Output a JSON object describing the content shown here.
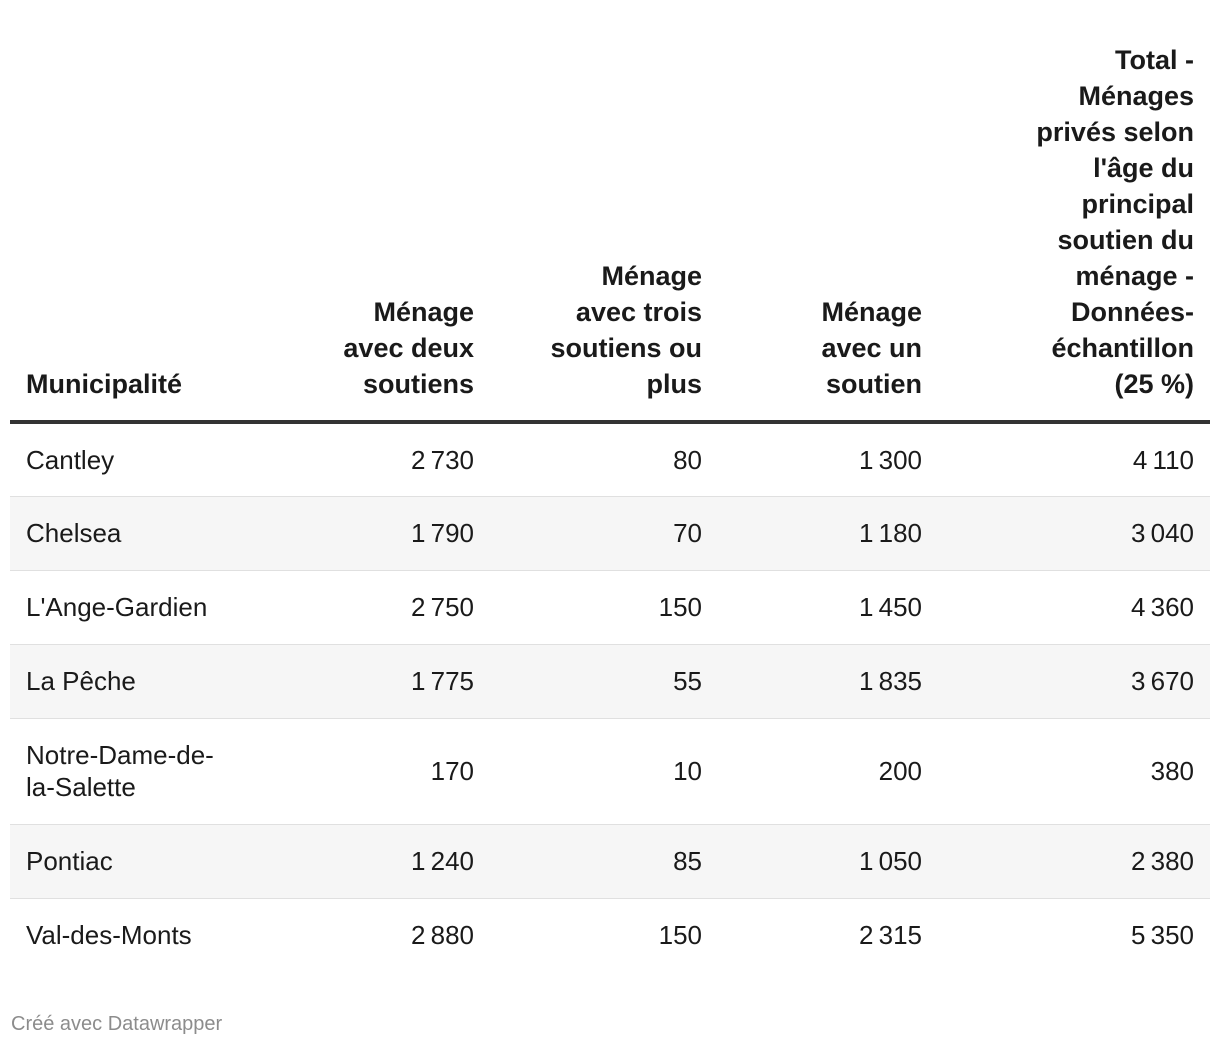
{
  "chart_data": {
    "type": "table",
    "columns": [
      "Municipalité",
      "Ménage avec deux soutiens",
      "Ménage avec trois soutiens ou plus",
      "Ménage avec un soutien",
      "Total - Ménages privés selon l'âge du principal soutien du ménage - Données-échantillon (25 %)"
    ],
    "header_lines": [
      [
        "Municipalité"
      ],
      [
        "Ménage",
        "avec deux",
        "soutiens"
      ],
      [
        "Ménage",
        "avec trois",
        "soutiens ou",
        "plus"
      ],
      [
        "Ménage",
        "avec un",
        "soutien"
      ],
      [
        "Total -",
        "Ménages",
        "privés selon",
        "l'âge du",
        "principal",
        "soutien du",
        "ménage -",
        "Données-",
        "échantillon",
        "(25 %)"
      ]
    ],
    "rows": [
      {
        "municipalite": "Cantley",
        "lines": [
          "Cantley"
        ],
        "deux": 2730,
        "trois": 80,
        "un": 1300,
        "total": 4110
      },
      {
        "municipalite": "Chelsea",
        "lines": [
          "Chelsea"
        ],
        "deux": 1790,
        "trois": 70,
        "un": 1180,
        "total": 3040
      },
      {
        "municipalite": "L'Ange-Gardien",
        "lines": [
          "L'Ange-Gardien"
        ],
        "deux": 2750,
        "trois": 150,
        "un": 1450,
        "total": 4360
      },
      {
        "municipalite": "La Pêche",
        "lines": [
          "La Pêche"
        ],
        "deux": 1775,
        "trois": 55,
        "un": 1835,
        "total": 3670
      },
      {
        "municipalite": "Notre-Dame-de-la-Salette",
        "lines": [
          "Notre-Dame-de-",
          "la-Salette"
        ],
        "deux": 170,
        "trois": 10,
        "un": 200,
        "total": 380
      },
      {
        "municipalite": "Pontiac",
        "lines": [
          "Pontiac"
        ],
        "deux": 1240,
        "trois": 85,
        "un": 1050,
        "total": 2380
      },
      {
        "municipalite": "Val-des-Monts",
        "lines": [
          "Val-des-Monts"
        ],
        "deux": 2880,
        "trois": 150,
        "un": 2315,
        "total": 5350
      }
    ]
  },
  "footer": {
    "credit": "Créé avec Datawrapper"
  },
  "colors": {
    "text": "#1a1a1a",
    "header_rule": "#333333",
    "row_shade": "#f6f6f6",
    "row_divider": "#e0e0e0",
    "footer_text": "#8c8c8c"
  }
}
